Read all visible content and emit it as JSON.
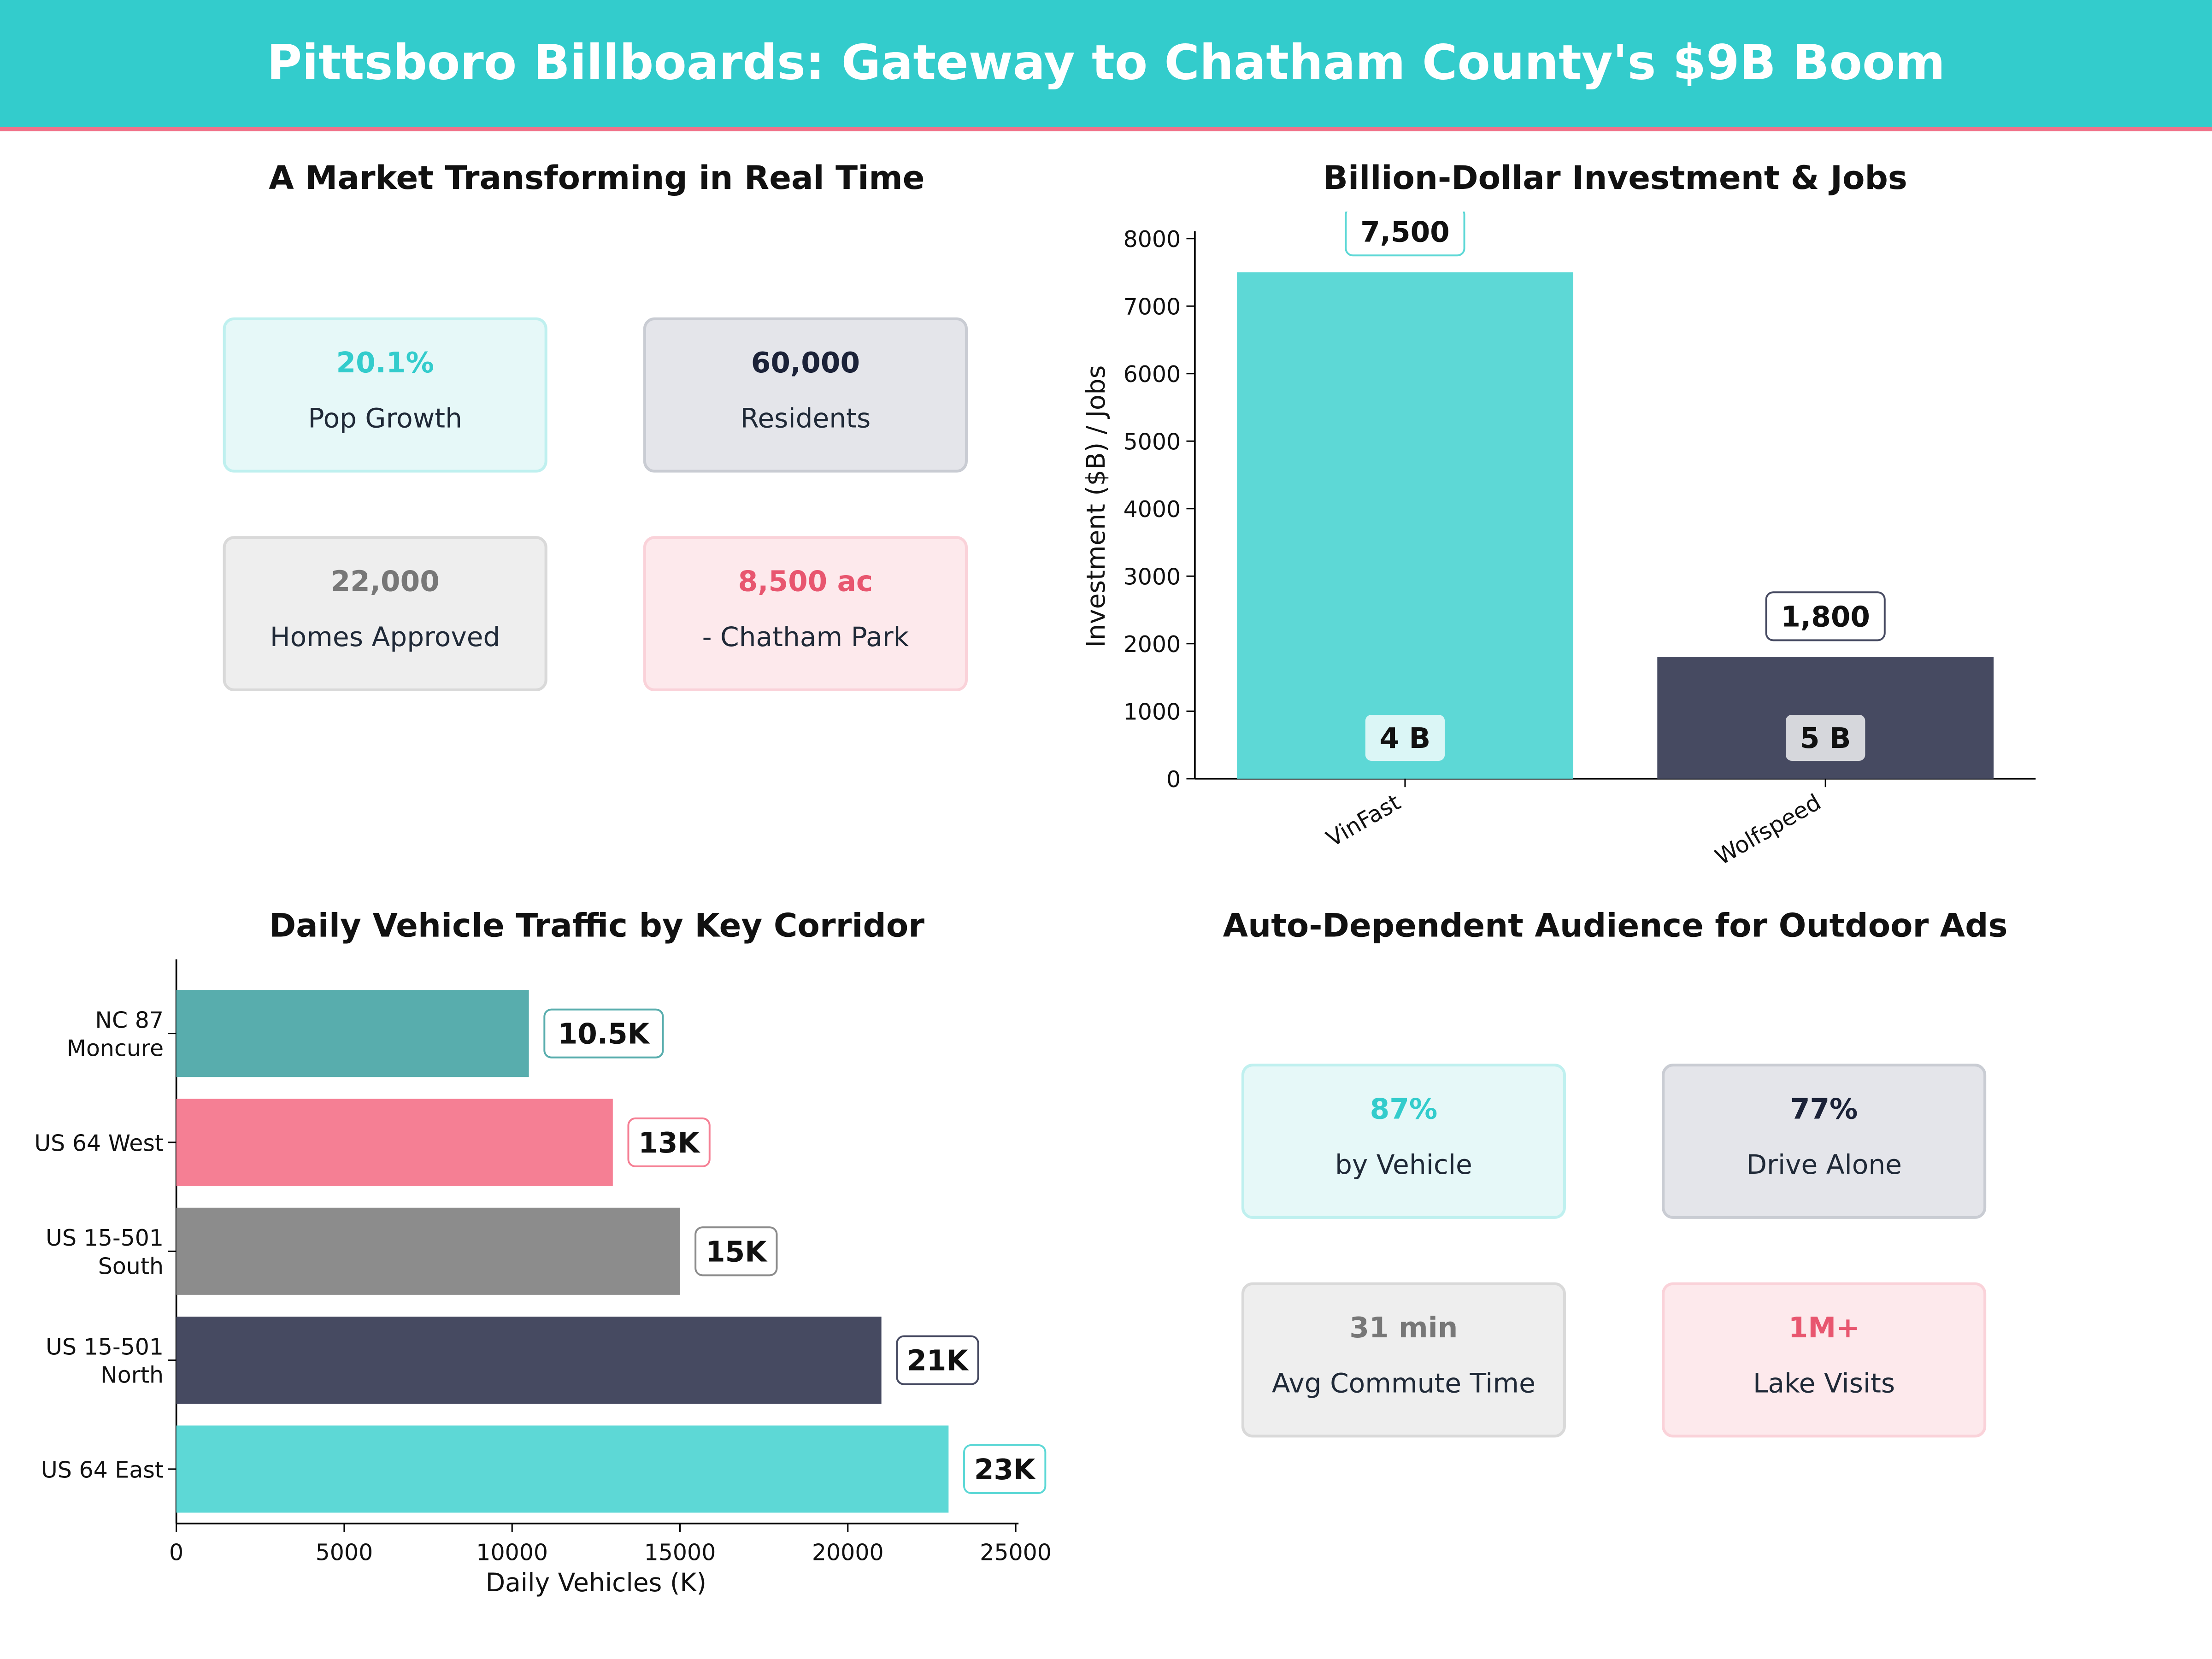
{
  "header": {
    "title": "Pittsboro Billboards: Gateway to Chatham County's $9B Boom"
  },
  "market": {
    "title": "A Market Transforming in Real Time",
    "kpis": [
      {
        "value": "20.1%",
        "label": "Pop Growth",
        "color": "#33cccc"
      },
      {
        "value": "60,000",
        "label": "Residents",
        "color": "#1b2238"
      },
      {
        "value": "22,000",
        "label": "Homes Approved",
        "color": "#777777"
      },
      {
        "value": "8,500 ac",
        "label": "- Chatham Park",
        "color": "#e8566f"
      }
    ]
  },
  "audience": {
    "title": "Auto-Dependent Audience for Outdoor Ads",
    "kpis": [
      {
        "value": "87%",
        "label": "by Vehicle",
        "color": "#33cccc"
      },
      {
        "value": "77%",
        "label": "Drive Alone",
        "color": "#1b2238"
      },
      {
        "value": "31 min",
        "label": "Avg Commute Time",
        "color": "#777777"
      },
      {
        "value": "1M+",
        "label": "Lake Visits",
        "color": "#e8566f"
      }
    ]
  },
  "chart_data": [
    {
      "type": "bar",
      "title": "Billion-Dollar Investment & Jobs",
      "ylabel": "Investment ($B) / Jobs",
      "xlabel": "",
      "categories": [
        "VinFast",
        "Wolfspeed"
      ],
      "values": [
        7500,
        1800
      ],
      "value_labels": [
        "7,500",
        "1,800"
      ],
      "inner_labels": [
        "4 B",
        "5 B"
      ],
      "colors": [
        "#5dd8d6",
        "#464a61"
      ],
      "ylim": [
        0,
        8400
      ],
      "yticks": [
        0,
        1000,
        2000,
        3000,
        4000,
        5000,
        6000,
        7000,
        8000
      ],
      "grid": false
    },
    {
      "type": "bar",
      "orientation": "horizontal",
      "title": "Daily Vehicle Traffic by Key Corridor",
      "xlabel": "Daily Vehicles (K)",
      "ylabel": "",
      "categories": [
        "NC 87\nMoncure",
        "US 64 West",
        "US 15-501\nSouth",
        "US 15-501\nNorth",
        "US 64 East"
      ],
      "values": [
        10500,
        13000,
        15000,
        21000,
        23000
      ],
      "value_labels": [
        "10.5K",
        "13K",
        "15K",
        "21K",
        "23K"
      ],
      "colors": [
        "#58adad",
        "#f57f94",
        "#8c8c8c",
        "#464a61",
        "#5dd8d6"
      ],
      "xlim": [
        0,
        25000
      ],
      "xticks": [
        0,
        5000,
        10000,
        15000,
        20000,
        25000
      ],
      "grid": false
    }
  ]
}
